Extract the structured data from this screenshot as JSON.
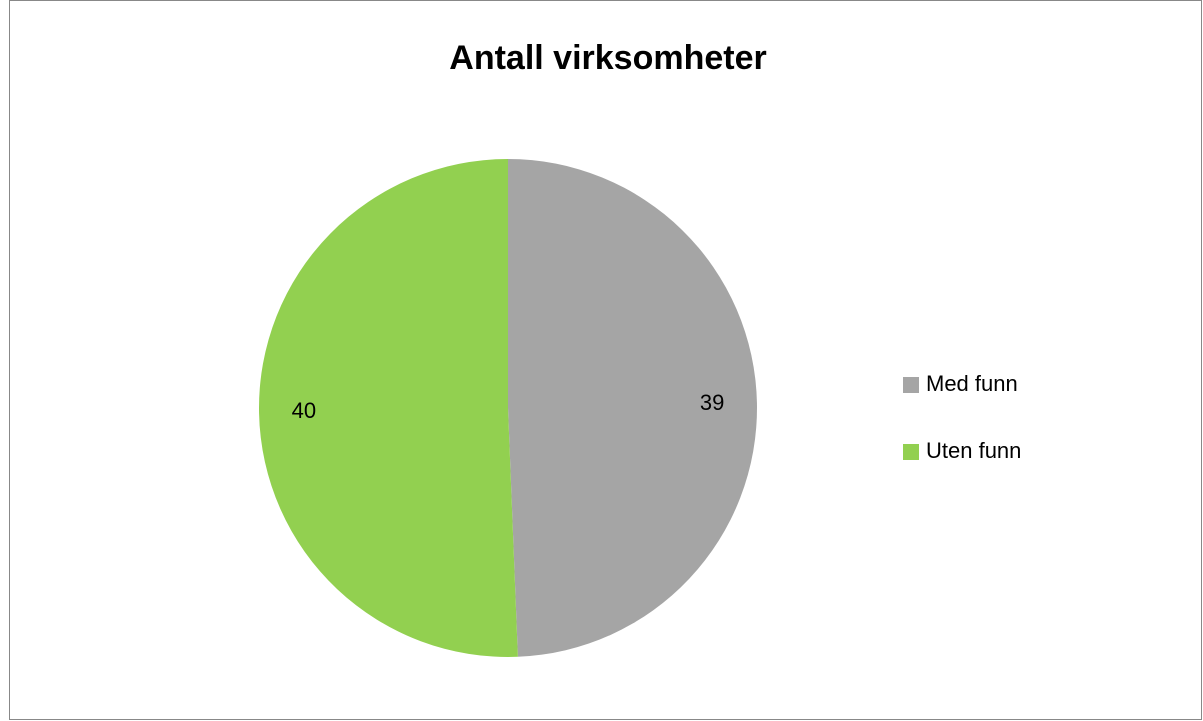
{
  "chart_data": {
    "type": "pie",
    "title": "Antall virksomheter",
    "categories": [
      "Med funn",
      "Uten funn"
    ],
    "values": [
      39,
      40
    ],
    "colors": [
      "#a5a5a5",
      "#92d050"
    ],
    "legend": "right"
  }
}
